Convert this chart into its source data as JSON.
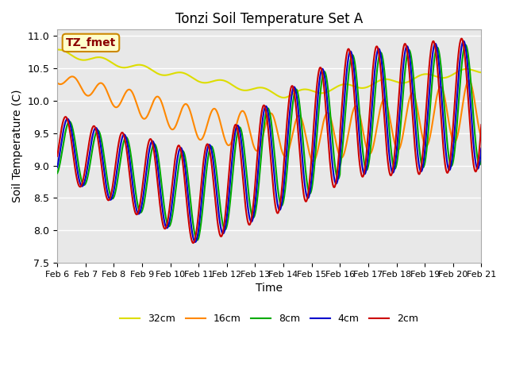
{
  "title": "Tonzi Soil Temperature Set A",
  "xlabel": "Time",
  "ylabel": "Soil Temperature (C)",
  "ylim": [
    7.5,
    11.1
  ],
  "x_tick_labels": [
    "Feb 6",
    "Feb 7",
    "Feb 8",
    "Feb 9",
    "Feb 10",
    "Feb 11",
    "Feb 12",
    "Feb 13",
    "Feb 14",
    "Feb 15",
    "Feb 16",
    "Feb 17",
    "Feb 18",
    "Feb 19",
    "Feb 20",
    "Feb 21"
  ],
  "colors": {
    "2cm": "#cc0000",
    "4cm": "#0000cc",
    "8cm": "#00aa00",
    "16cm": "#ff8800",
    "32cm": "#dddd00"
  },
  "annotation_text": "TZ_fmet",
  "annotation_color": "#8b0000",
  "annotation_bg": "#ffffcc",
  "annotation_border": "#cc8800",
  "bg_color": "#ffffff",
  "plot_bg_color": "#e8e8e8",
  "grid_color": "#ffffff",
  "linewidth": 1.5
}
